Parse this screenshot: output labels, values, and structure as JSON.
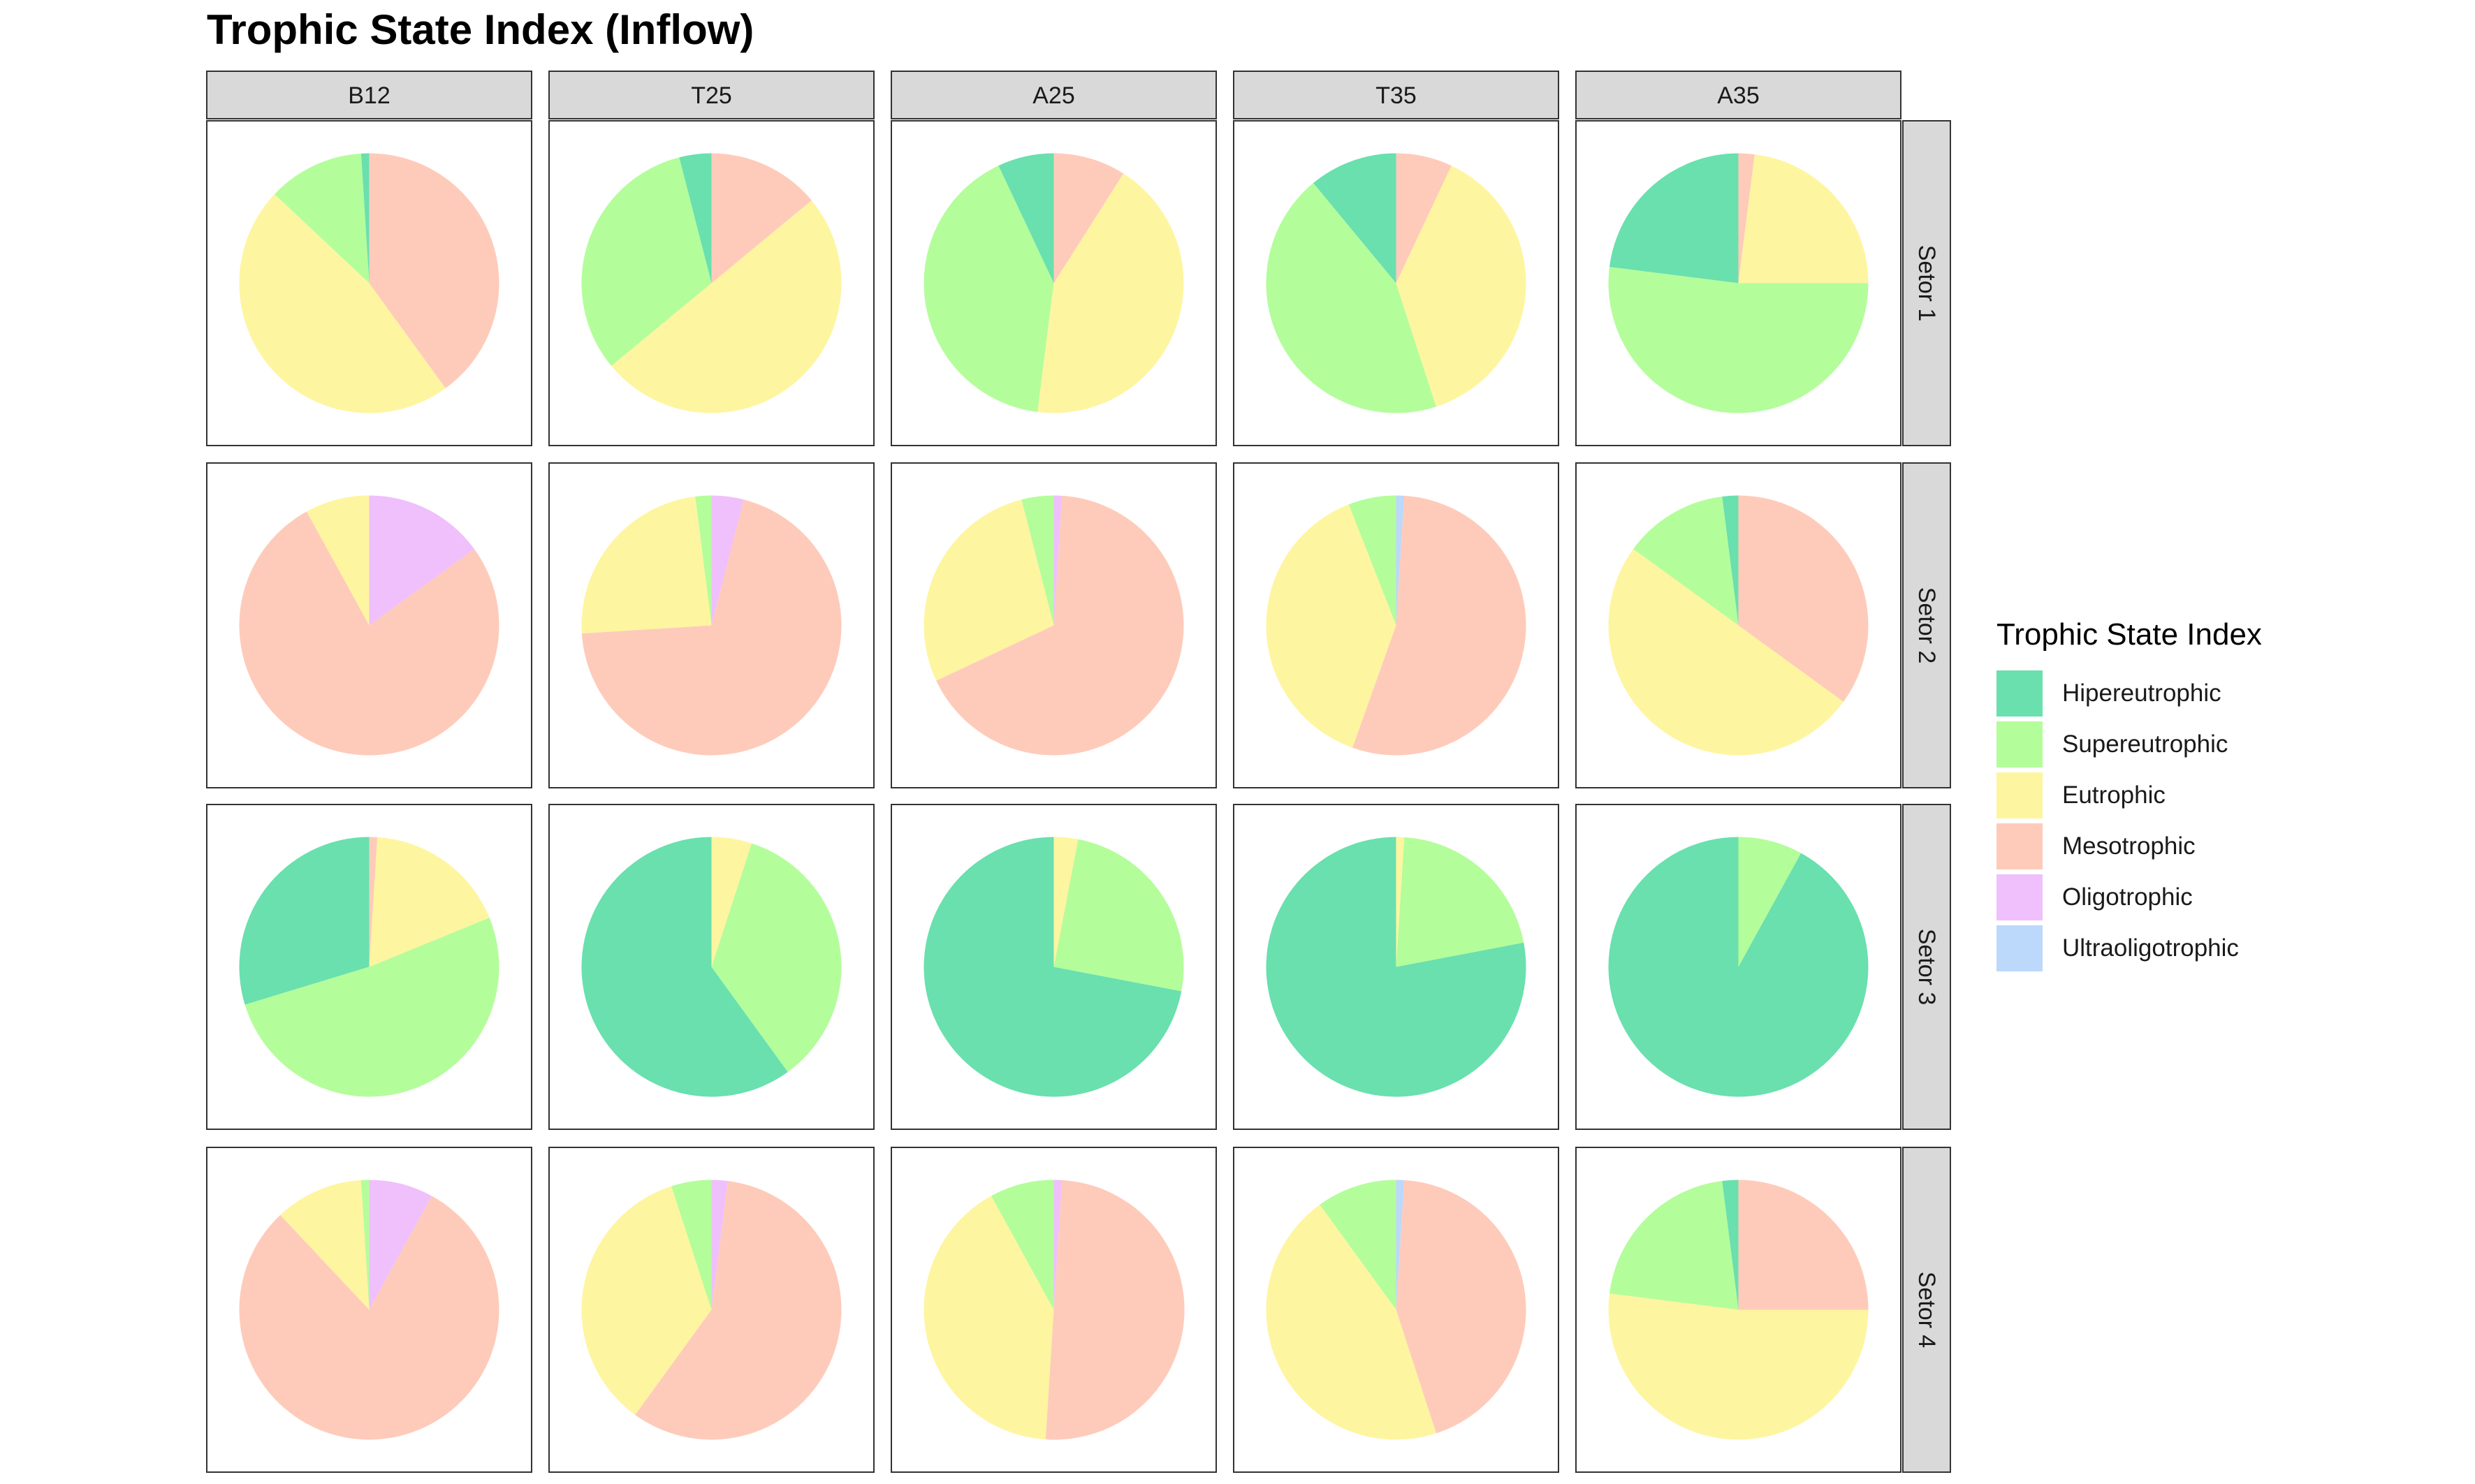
{
  "title": "Trophic State Index (Inflow)",
  "chart_data": {
    "type": "pie",
    "title": "Trophic State Index (Inflow)",
    "legend_title": "Trophic State Index",
    "legend_position": "right",
    "columns": [
      "B12",
      "T25",
      "A25",
      "T35",
      "A35"
    ],
    "rows": [
      "Setor 1",
      "Setor 2",
      "Setor 3",
      "Setor 4"
    ],
    "categories": [
      "Hipereutrophic",
      "Supereutrophic",
      "Eutrophic",
      "Mesotrophic",
      "Oligotrophic",
      "Ultraoligotrophic"
    ],
    "colors": [
      "#69E0AE",
      "#B4FD9B",
      "#FEF5A0",
      "#FECBBA",
      "#EFC0FB",
      "#BCD8FB"
    ],
    "panels": [
      {
        "row": "Setor 1",
        "column": "B12",
        "values": [
          1,
          12,
          47,
          40,
          0,
          0
        ]
      },
      {
        "row": "Setor 1",
        "column": "T25",
        "values": [
          4,
          32,
          50,
          14,
          0,
          0
        ]
      },
      {
        "row": "Setor 1",
        "column": "A25",
        "values": [
          7,
          41,
          43,
          9,
          0,
          0
        ]
      },
      {
        "row": "Setor 1",
        "column": "T35",
        "values": [
          11,
          44,
          38,
          7,
          0,
          0
        ]
      },
      {
        "row": "Setor 1",
        "column": "A35",
        "values": [
          23,
          52,
          23,
          2,
          0,
          0
        ]
      },
      {
        "row": "Setor 2",
        "column": "B12",
        "values": [
          0,
          0,
          8,
          77,
          15,
          0
        ]
      },
      {
        "row": "Setor 2",
        "column": "T25",
        "values": [
          0,
          2,
          24,
          70,
          4,
          0
        ]
      },
      {
        "row": "Setor 2",
        "column": "A25",
        "values": [
          0,
          4,
          28,
          67,
          1,
          0
        ]
      },
      {
        "row": "Setor 2",
        "column": "T35",
        "values": [
          0,
          6,
          39,
          55,
          0,
          1
        ]
      },
      {
        "row": "Setor 2",
        "column": "A35",
        "values": [
          2,
          13,
          50,
          35,
          0,
          0
        ]
      },
      {
        "row": "Setor 3",
        "column": "B12",
        "values": [
          30,
          52,
          18,
          1,
          0,
          0
        ]
      },
      {
        "row": "Setor 3",
        "column": "T25",
        "values": [
          60,
          35,
          5,
          0,
          0,
          0
        ]
      },
      {
        "row": "Setor 3",
        "column": "A25",
        "values": [
          72,
          25,
          3,
          0,
          0,
          0
        ]
      },
      {
        "row": "Setor 3",
        "column": "T35",
        "values": [
          78,
          21,
          1,
          0,
          0,
          0
        ]
      },
      {
        "row": "Setor 3",
        "column": "A35",
        "values": [
          92,
          8,
          0,
          0,
          0,
          0
        ]
      },
      {
        "row": "Setor 4",
        "column": "B12",
        "values": [
          0,
          1,
          11,
          80,
          8,
          0
        ]
      },
      {
        "row": "Setor 4",
        "column": "T25",
        "values": [
          0,
          5,
          35,
          58,
          2,
          0
        ]
      },
      {
        "row": "Setor 4",
        "column": "A25",
        "values": [
          0,
          8,
          41,
          50,
          1,
          0
        ]
      },
      {
        "row": "Setor 4",
        "column": "T35",
        "values": [
          0,
          10,
          45,
          44,
          0,
          1
        ]
      },
      {
        "row": "Setor 4",
        "column": "A35",
        "values": [
          2,
          21,
          52,
          25,
          0,
          0
        ]
      }
    ]
  }
}
